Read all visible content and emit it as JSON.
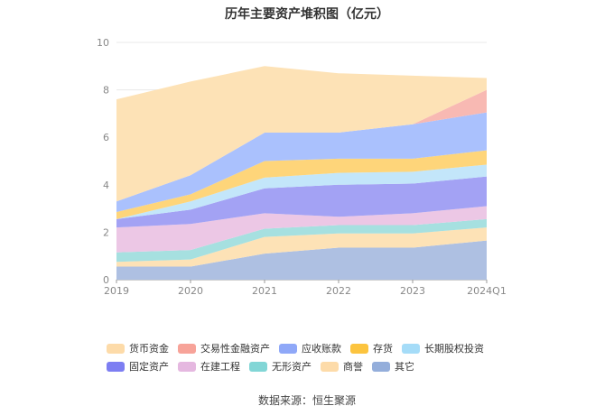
{
  "chart_data": {
    "type": "area",
    "stacked": true,
    "title": "历年主要资产堆积图（亿元）",
    "categories": [
      "2019",
      "2020",
      "2021",
      "2022",
      "2023",
      "2024Q1"
    ],
    "ylim": [
      0,
      10
    ],
    "yticks": [
      "0",
      "2",
      "4",
      "6",
      "8",
      "10"
    ],
    "grid": true,
    "legend_position": "bottom",
    "series": [
      {
        "name": "其它",
        "color": "#aec0e2",
        "values": [
          0.55,
          0.55,
          1.1,
          1.35,
          1.35,
          1.65
        ]
      },
      {
        "name": "商誉",
        "color": "#fde2b6",
        "values": [
          0.2,
          0.3,
          0.7,
          0.6,
          0.6,
          0.55
        ]
      },
      {
        "name": "无形资产",
        "color": "#a6e0e0",
        "values": [
          0.4,
          0.4,
          0.35,
          0.35,
          0.35,
          0.35
        ]
      },
      {
        "name": "在建工程",
        "color": "#ecc7e5",
        "values": [
          1.05,
          1.1,
          0.65,
          0.35,
          0.5,
          0.55
        ]
      },
      {
        "name": "固定资产",
        "color": "#a3a2f4",
        "values": [
          0.35,
          0.6,
          1.05,
          1.35,
          1.25,
          1.25
        ]
      },
      {
        "name": "长期股权投资",
        "color": "#c3e6fa",
        "values": [
          0.0,
          0.35,
          0.45,
          0.5,
          0.5,
          0.5
        ]
      },
      {
        "name": "存货",
        "color": "#fed57a",
        "values": [
          0.3,
          0.3,
          0.7,
          0.6,
          0.55,
          0.6
        ]
      },
      {
        "name": "应收账款",
        "color": "#aac1fd",
        "values": [
          0.45,
          0.8,
          1.2,
          1.1,
          1.45,
          1.6
        ]
      },
      {
        "name": "交易性金融资产",
        "color": "#f8b9b3",
        "values": [
          0.0,
          0.0,
          0.0,
          0.0,
          0.0,
          0.95
        ]
      },
      {
        "name": "货币资金",
        "color": "#fde2b6",
        "values": [
          4.3,
          3.95,
          2.8,
          2.5,
          2.05,
          0.5
        ]
      }
    ],
    "legend_order": [
      "货币资金",
      "交易性金融资产",
      "应收账款",
      "存货",
      "长期股权投资",
      "固定资产",
      "在建工程",
      "无形资产",
      "商誉",
      "其它"
    ],
    "legend_colors": {
      "货币资金": "#fddba9",
      "交易性金融资产": "#f7a399",
      "应收账款": "#8fa8f8",
      "存货": "#fcc43f",
      "长期股权投资": "#a5dcf8",
      "固定资产": "#7d7ef2",
      "在建工程": "#e5b8e0",
      "无形资产": "#82d6d6",
      "商誉": "#fddba9",
      "其它": "#94aedb"
    }
  },
  "source_label": "数据来源：恒生聚源"
}
